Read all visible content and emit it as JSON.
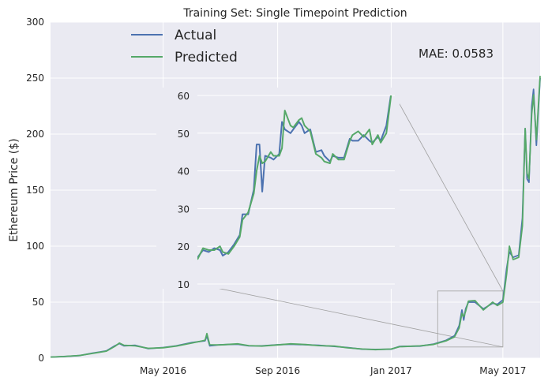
{
  "chart_data": {
    "type": "line",
    "title": "Training Set: Single Timepoint Prediction",
    "xlabel": "",
    "ylabel": "Ethereum Price ($)",
    "xlim": [
      "2016-01-01",
      "2017-06-10"
    ],
    "ylim": [
      0,
      300
    ],
    "x_ticks": [
      {
        "date": "2016-05-01",
        "label": "May 2016"
      },
      {
        "date": "2016-09-01",
        "label": "Sep 2016"
      },
      {
        "date": "2017-01-01",
        "label": "Jan 2017"
      },
      {
        "date": "2017-05-01",
        "label": "May 2017"
      }
    ],
    "y_ticks": [
      0,
      50,
      100,
      150,
      200,
      250,
      300
    ],
    "grid": true,
    "legend": {
      "placement": "top-left",
      "entries": [
        "Actual",
        "Predicted"
      ]
    },
    "annotation": "MAE: 0.0583",
    "colors": {
      "Actual": "#4c72b0",
      "Predicted": "#55a868",
      "background": "#eaeaf2",
      "grid": "#ffffff"
    },
    "series": [
      {
        "name": "Actual",
        "points": [
          [
            "2016-01-01",
            1.0
          ],
          [
            "2016-01-15",
            1.4
          ],
          [
            "2016-02-01",
            2.3
          ],
          [
            "2016-02-15",
            4.5
          ],
          [
            "2016-03-01",
            6.5
          ],
          [
            "2016-03-10",
            11.0
          ],
          [
            "2016-03-15",
            13.0
          ],
          [
            "2016-03-20",
            11.0
          ],
          [
            "2016-04-01",
            11.5
          ],
          [
            "2016-04-15",
            8.5
          ],
          [
            "2016-05-01",
            9.5
          ],
          [
            "2016-05-15",
            11.0
          ],
          [
            "2016-06-01",
            14.0
          ],
          [
            "2016-06-15",
            15.5
          ],
          [
            "2016-06-17",
            20.0
          ],
          [
            "2016-06-20",
            11.0
          ],
          [
            "2016-07-01",
            12.0
          ],
          [
            "2016-07-20",
            12.5
          ],
          [
            "2016-08-01",
            11.0
          ],
          [
            "2016-08-15",
            11.0
          ],
          [
            "2016-09-01",
            12.0
          ],
          [
            "2016-09-15",
            12.5
          ],
          [
            "2016-10-01",
            12.0
          ],
          [
            "2016-10-15",
            11.5
          ],
          [
            "2016-11-01",
            10.5
          ],
          [
            "2016-11-15",
            9.5
          ],
          [
            "2016-12-01",
            8.0
          ],
          [
            "2016-12-15",
            7.8
          ],
          [
            "2017-01-01",
            8.0
          ],
          [
            "2017-01-10",
            10.5
          ],
          [
            "2017-02-01",
            10.8
          ],
          [
            "2017-02-15",
            12.5
          ],
          [
            "2017-03-01",
            16.0
          ],
          [
            "2017-03-10",
            20.0
          ],
          [
            "2017-03-15",
            29.0
          ],
          [
            "2017-03-18",
            43.0
          ],
          [
            "2017-03-20",
            34.0
          ],
          [
            "2017-03-22",
            44.0
          ],
          [
            "2017-03-25",
            50.0
          ],
          [
            "2017-04-01",
            50.0
          ],
          [
            "2017-04-10",
            44.0
          ],
          [
            "2017-04-20",
            49.0
          ],
          [
            "2017-04-25",
            48.0
          ],
          [
            "2017-05-01",
            52.0
          ],
          [
            "2017-05-05",
            80.0
          ],
          [
            "2017-05-08",
            95.0
          ],
          [
            "2017-05-12",
            90.0
          ],
          [
            "2017-05-18",
            92.0
          ],
          [
            "2017-05-22",
            125.0
          ],
          [
            "2017-05-25",
            205.0
          ],
          [
            "2017-05-27",
            160.0
          ],
          [
            "2017-05-29",
            157.0
          ],
          [
            "2017-06-01",
            225.0
          ],
          [
            "2017-06-03",
            240.0
          ],
          [
            "2017-06-06",
            190.0
          ],
          [
            "2017-06-10",
            250.0
          ]
        ]
      },
      {
        "name": "Predicted",
        "points": [
          [
            "2016-01-01",
            1.0
          ],
          [
            "2016-01-15",
            1.5
          ],
          [
            "2016-02-01",
            2.4
          ],
          [
            "2016-02-15",
            4.2
          ],
          [
            "2016-03-01",
            6.3
          ],
          [
            "2016-03-10",
            10.5
          ],
          [
            "2016-03-15",
            13.5
          ],
          [
            "2016-03-20",
            11.5
          ],
          [
            "2016-04-01",
            11.0
          ],
          [
            "2016-04-15",
            8.8
          ],
          [
            "2016-05-01",
            9.3
          ],
          [
            "2016-05-15",
            10.8
          ],
          [
            "2016-06-01",
            13.5
          ],
          [
            "2016-06-15",
            16.0
          ],
          [
            "2016-06-17",
            22.0
          ],
          [
            "2016-06-20",
            12.0
          ],
          [
            "2016-07-01",
            11.8
          ],
          [
            "2016-07-20",
            12.8
          ],
          [
            "2016-08-01",
            11.2
          ],
          [
            "2016-08-15",
            10.8
          ],
          [
            "2016-09-01",
            11.8
          ],
          [
            "2016-09-15",
            12.8
          ],
          [
            "2016-10-01",
            12.2
          ],
          [
            "2016-10-15",
            11.2
          ],
          [
            "2016-11-01",
            10.8
          ],
          [
            "2016-11-15",
            9.2
          ],
          [
            "2016-12-01",
            8.2
          ],
          [
            "2016-12-15",
            7.6
          ],
          [
            "2017-01-01",
            8.2
          ],
          [
            "2017-01-10",
            10.2
          ],
          [
            "2017-02-01",
            11.0
          ],
          [
            "2017-02-15",
            12.2
          ],
          [
            "2017-03-01",
            15.5
          ],
          [
            "2017-03-10",
            19.0
          ],
          [
            "2017-03-15",
            27.0
          ],
          [
            "2017-03-18",
            40.0
          ],
          [
            "2017-03-20",
            37.0
          ],
          [
            "2017-03-22",
            42.0
          ],
          [
            "2017-03-25",
            51.0
          ],
          [
            "2017-04-01",
            51.5
          ],
          [
            "2017-04-10",
            43.0
          ],
          [
            "2017-04-20",
            50.0
          ],
          [
            "2017-04-25",
            47.0
          ],
          [
            "2017-05-01",
            50.0
          ],
          [
            "2017-05-05",
            75.0
          ],
          [
            "2017-05-08",
            100.0
          ],
          [
            "2017-05-12",
            88.0
          ],
          [
            "2017-05-18",
            90.0
          ],
          [
            "2017-05-22",
            118.0
          ],
          [
            "2017-05-25",
            205.0
          ],
          [
            "2017-05-27",
            165.0
          ],
          [
            "2017-05-29",
            160.0
          ],
          [
            "2017-06-01",
            218.0
          ],
          [
            "2017-06-03",
            235.0
          ],
          [
            "2017-06-06",
            195.0
          ],
          [
            "2017-06-10",
            252.0
          ]
        ]
      }
    ],
    "inset": {
      "xlim": [
        "2017-02-20",
        "2017-05-01"
      ],
      "ylim": [
        10,
        60
      ],
      "y_ticks": [
        10,
        20,
        30,
        40,
        50,
        60
      ],
      "series": [
        {
          "name": "Actual",
          "points": [
            [
              "2017-02-20",
              17.0
            ],
            [
              "2017-02-22",
              19.0
            ],
            [
              "2017-02-24",
              18.5
            ],
            [
              "2017-02-26",
              19.5
            ],
            [
              "2017-02-28",
              19.0
            ],
            [
              "2017-03-01",
              17.5
            ],
            [
              "2017-03-03",
              18.5
            ],
            [
              "2017-03-05",
              20.5
            ],
            [
              "2017-03-07",
              23.0
            ],
            [
              "2017-03-08",
              28.5
            ],
            [
              "2017-03-10",
              28.5
            ],
            [
              "2017-03-12",
              35.0
            ],
            [
              "2017-03-13",
              47.0
            ],
            [
              "2017-03-14",
              47.0
            ],
            [
              "2017-03-15",
              34.5
            ],
            [
              "2017-03-16",
              44.0
            ],
            [
              "2017-03-18",
              43.5
            ],
            [
              "2017-03-19",
              43.0
            ],
            [
              "2017-03-21",
              44.5
            ],
            [
              "2017-03-22",
              53.0
            ],
            [
              "2017-03-23",
              51.0
            ],
            [
              "2017-03-25",
              50.0
            ],
            [
              "2017-03-26",
              51.0
            ],
            [
              "2017-03-28",
              53.0
            ],
            [
              "2017-03-29",
              52.0
            ],
            [
              "2017-03-30",
              50.0
            ],
            [
              "2017-04-01",
              51.0
            ],
            [
              "2017-04-03",
              45.0
            ],
            [
              "2017-04-05",
              45.5
            ],
            [
              "2017-04-06",
              44.0
            ],
            [
              "2017-04-08",
              42.5
            ],
            [
              "2017-04-09",
              44.0
            ],
            [
              "2017-04-11",
              43.5
            ],
            [
              "2017-04-13",
              43.5
            ],
            [
              "2017-04-15",
              48.5
            ],
            [
              "2017-04-16",
              48.0
            ],
            [
              "2017-04-18",
              48.0
            ],
            [
              "2017-04-20",
              49.5
            ],
            [
              "2017-04-22",
              48.0
            ],
            [
              "2017-04-23",
              47.5
            ],
            [
              "2017-04-25",
              49.0
            ],
            [
              "2017-04-26",
              48.0
            ],
            [
              "2017-04-28",
              52.0
            ],
            [
              "2017-04-30",
              62.0
            ]
          ]
        },
        {
          "name": "Predicted",
          "points": [
            [
              "2017-02-20",
              16.5
            ],
            [
              "2017-02-22",
              19.5
            ],
            [
              "2017-02-24",
              19.0
            ],
            [
              "2017-02-26",
              19.0
            ],
            [
              "2017-02-28",
              20.0
            ],
            [
              "2017-03-01",
              18.5
            ],
            [
              "2017-03-03",
              18.0
            ],
            [
              "2017-03-05",
              20.0
            ],
            [
              "2017-03-07",
              22.5
            ],
            [
              "2017-03-08",
              27.0
            ],
            [
              "2017-03-10",
              29.0
            ],
            [
              "2017-03-12",
              34.0
            ],
            [
              "2017-03-13",
              40.0
            ],
            [
              "2017-03-14",
              44.0
            ],
            [
              "2017-03-15",
              42.0
            ],
            [
              "2017-03-16",
              42.5
            ],
            [
              "2017-03-18",
              45.0
            ],
            [
              "2017-03-19",
              44.0
            ],
            [
              "2017-03-21",
              44.0
            ],
            [
              "2017-03-22",
              46.0
            ],
            [
              "2017-03-23",
              56.0
            ],
            [
              "2017-03-25",
              52.0
            ],
            [
              "2017-03-26",
              51.5
            ],
            [
              "2017-03-28",
              53.5
            ],
            [
              "2017-03-29",
              54.0
            ],
            [
              "2017-03-30",
              52.0
            ],
            [
              "2017-04-01",
              50.5
            ],
            [
              "2017-04-03",
              44.5
            ],
            [
              "2017-04-05",
              43.5
            ],
            [
              "2017-04-06",
              42.5
            ],
            [
              "2017-04-08",
              42.0
            ],
            [
              "2017-04-09",
              44.5
            ],
            [
              "2017-04-11",
              43.0
            ],
            [
              "2017-04-13",
              43.0
            ],
            [
              "2017-04-15",
              48.0
            ],
            [
              "2017-04-16",
              49.5
            ],
            [
              "2017-04-18",
              50.5
            ],
            [
              "2017-04-20",
              49.0
            ],
            [
              "2017-04-22",
              51.0
            ],
            [
              "2017-04-23",
              47.0
            ],
            [
              "2017-04-25",
              49.5
            ],
            [
              "2017-04-26",
              47.5
            ],
            [
              "2017-04-28",
              50.0
            ],
            [
              "2017-04-30",
              62.0
            ]
          ]
        }
      ]
    }
  }
}
